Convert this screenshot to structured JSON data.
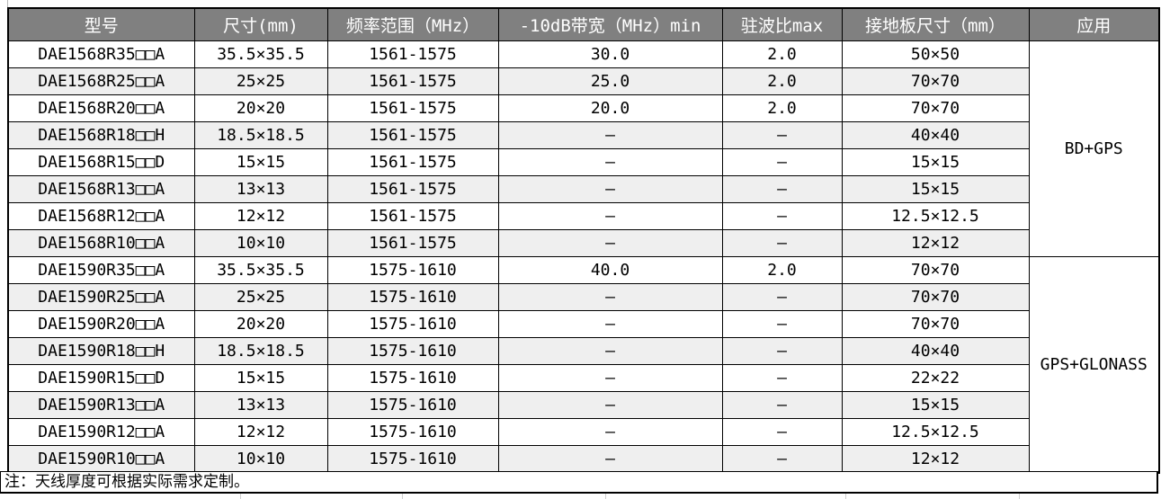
{
  "colors": {
    "header_bg": "#808080",
    "header_text": "#ffffff",
    "row_alt_bg": "#efefef",
    "border": "#000000"
  },
  "chart_data": {
    "type": "table",
    "columns": [
      "型号",
      "尺寸(mm)",
      "频率范围（MHz）",
      "-10dB带宽（MHz）min",
      "驻波比max",
      "接地板尺寸（mm）",
      "应用"
    ],
    "row_groups": [
      {
        "application": "BD+GPS",
        "rows": [
          [
            "DAE1568R35□□A",
            "35.5×35.5",
            "1561-1575",
            "30.0",
            "2.0",
            "50×50"
          ],
          [
            "DAE1568R25□□A",
            "25×25",
            "1561-1575",
            "25.0",
            "2.0",
            "70×70"
          ],
          [
            "DAE1568R20□□A",
            "20×20",
            "1561-1575",
            "20.0",
            "2.0",
            "70×70"
          ],
          [
            "DAE1568R18□□H",
            "18.5×18.5",
            "1561-1575",
            "—",
            "—",
            "40×40"
          ],
          [
            "DAE1568R15□□D",
            "15×15",
            "1561-1575",
            "—",
            "—",
            "15×15"
          ],
          [
            "DAE1568R13□□A",
            "13×13",
            "1561-1575",
            "—",
            "—",
            "15×15"
          ],
          [
            "DAE1568R12□□A",
            "12×12",
            "1561-1575",
            "—",
            "—",
            "12.5×12.5"
          ],
          [
            "DAE1568R10□□A",
            "10×10",
            "1561-1575",
            "—",
            "—",
            "12×12"
          ]
        ]
      },
      {
        "application": "GPS+GLONASS",
        "rows": [
          [
            "DAE1590R35□□A",
            "35.5×35.5",
            "1575-1610",
            "40.0",
            "2.0",
            "70×70"
          ],
          [
            "DAE1590R25□□A",
            "25×25",
            "1575-1610",
            "—",
            "—",
            "70×70"
          ],
          [
            "DAE1590R20□□A",
            "20×20",
            "1575-1610",
            "—",
            "—",
            "70×70"
          ],
          [
            "DAE1590R18□□H",
            "18.5×18.5",
            "1575-1610",
            "—",
            "—",
            "40×40"
          ],
          [
            "DAE1590R15□□D",
            "15×15",
            "1575-1610",
            "—",
            "—",
            "22×22"
          ],
          [
            "DAE1590R13□□A",
            "13×13",
            "1575-1610",
            "—",
            "—",
            "15×15"
          ],
          [
            "DAE1590R12□□A",
            "12×12",
            "1575-1610",
            "—",
            "—",
            "12.5×12.5"
          ],
          [
            "DAE1590R10□□A",
            "10×10",
            "1575-1610",
            "—",
            "—",
            "12×12"
          ]
        ]
      }
    ],
    "note": "注：天线厚度可根据实际需求定制。"
  }
}
